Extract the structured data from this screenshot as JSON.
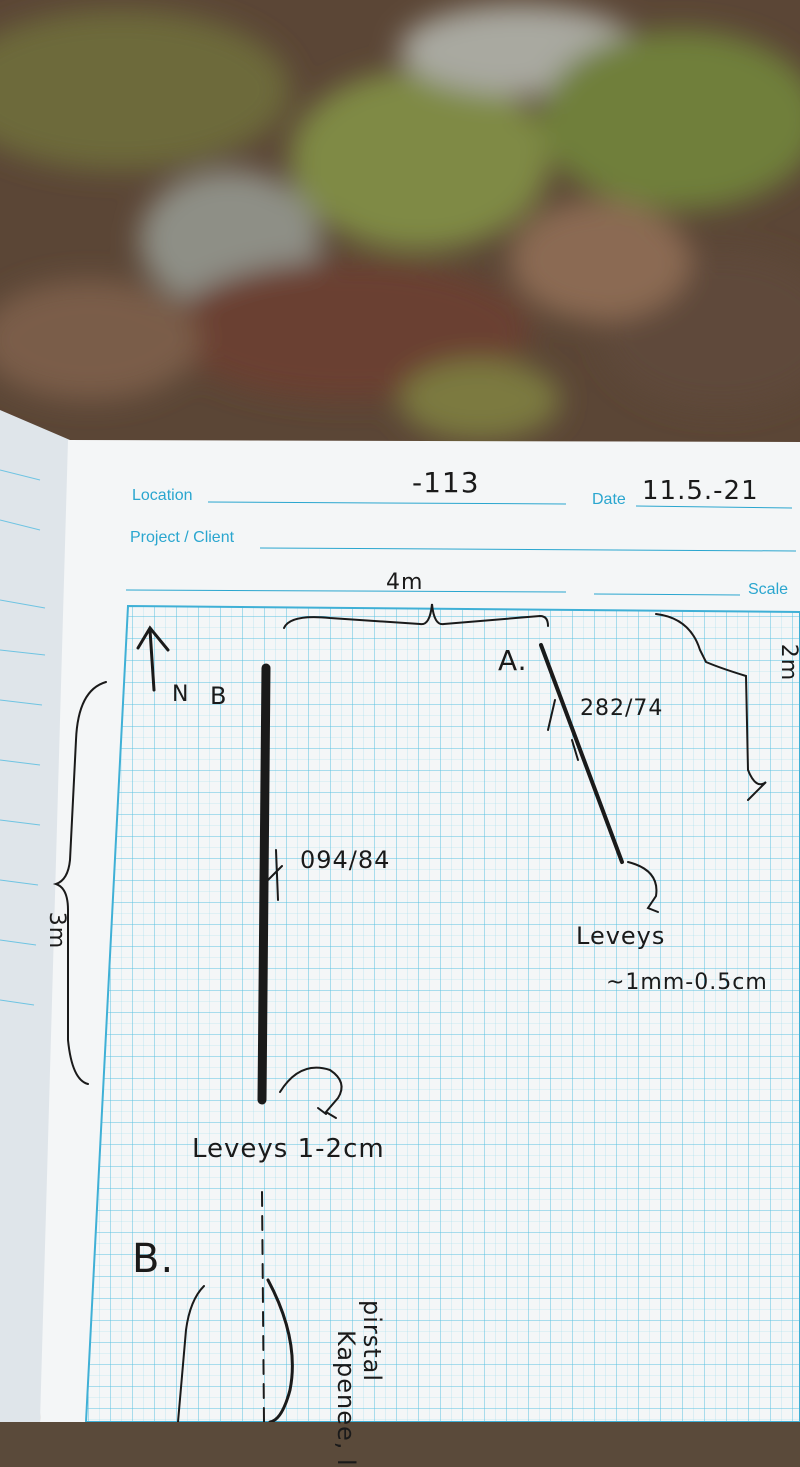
{
  "notebook": {
    "form": {
      "location_label": "Location",
      "date_label": "Date",
      "project_label": "Project / Client",
      "scale_label": "Scale"
    },
    "entries": {
      "location_value": "-113",
      "date_value": "11.5.-21"
    },
    "sketch": {
      "width_dim": "4m",
      "height_dim": "3m",
      "right_dim": "2m",
      "north_label": "N",
      "fracture_b_tag": "B",
      "fracture_a_tag": "A.",
      "orientation_b": "094/84",
      "orientation_a": "282/74",
      "aperture_b": "Leveys 1-2cm",
      "aperture_a_label": "Leveys",
      "aperture_a_value": "~1mm-0.5cm",
      "section_b": "B.",
      "side_note_1": "Kapenee, l",
      "side_note_2": "pirstal"
    }
  }
}
